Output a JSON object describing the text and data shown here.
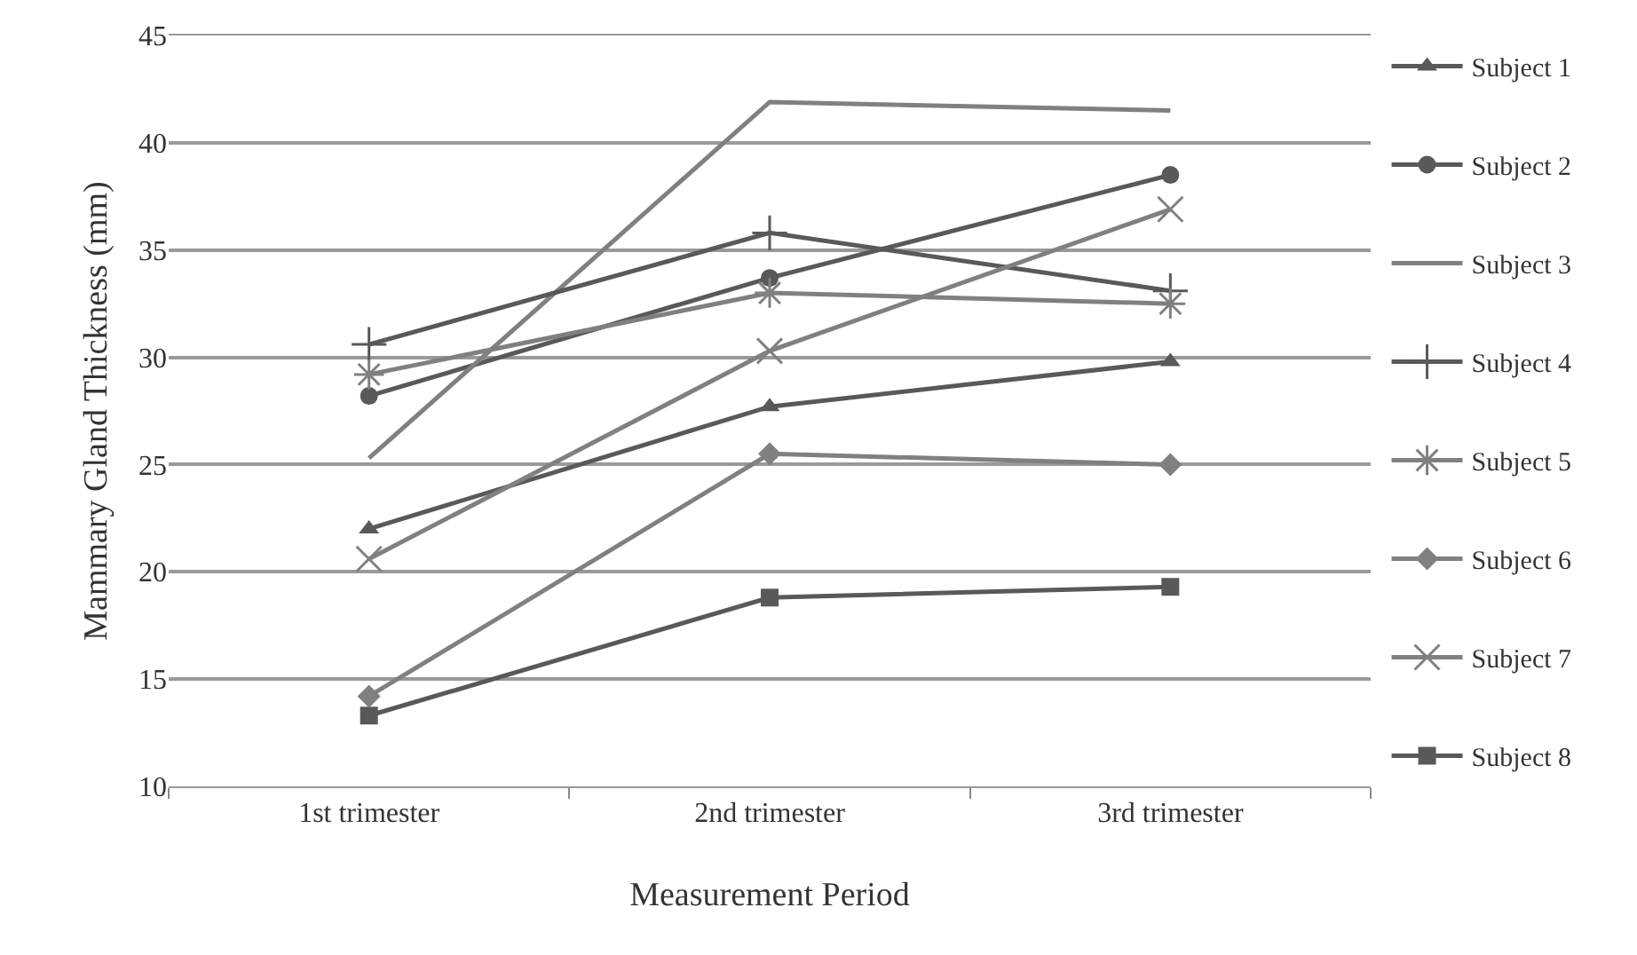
{
  "chart_data": {
    "type": "line",
    "xlabel": "Measurement Period",
    "ylabel": "Mammary Gland Thickness (mm)",
    "categories": [
      "1st trimester",
      "2nd trimester",
      "3rd trimester"
    ],
    "series": [
      {
        "name": "Subject 1",
        "color": "#595959",
        "marker": "triangle",
        "values": [
          22.0,
          27.7,
          29.8
        ]
      },
      {
        "name": "Subject 2",
        "color": "#595959",
        "marker": "circle",
        "values": [
          28.2,
          33.7,
          38.5
        ]
      },
      {
        "name": "Subject 3",
        "color": "#808080",
        "marker": "none",
        "values": [
          25.3,
          41.9,
          41.5
        ]
      },
      {
        "name": "Subject 4",
        "color": "#595959",
        "marker": "cross",
        "values": [
          30.6,
          35.8,
          33.1
        ]
      },
      {
        "name": "Subject 5",
        "color": "#808080",
        "marker": "cross",
        "values": [
          29.2,
          33.0,
          32.5
        ]
      },
      {
        "name": "Subject 6",
        "color": "#808080",
        "marker": "diamond",
        "values": [
          14.2,
          25.5,
          25.0
        ]
      },
      {
        "name": "Subject 7",
        "color": "#808080",
        "marker": "cross",
        "values": [
          20.6,
          30.3,
          36.9
        ]
      },
      {
        "name": "Subject 8",
        "color": "#595959",
        "marker": "square",
        "values": [
          13.3,
          18.8,
          19.3
        ]
      }
    ],
    "ylim": [
      10,
      45
    ],
    "yticks": [
      10,
      15,
      20,
      25,
      30,
      35,
      40,
      45
    ],
    "grid": "y",
    "legend": "right"
  }
}
